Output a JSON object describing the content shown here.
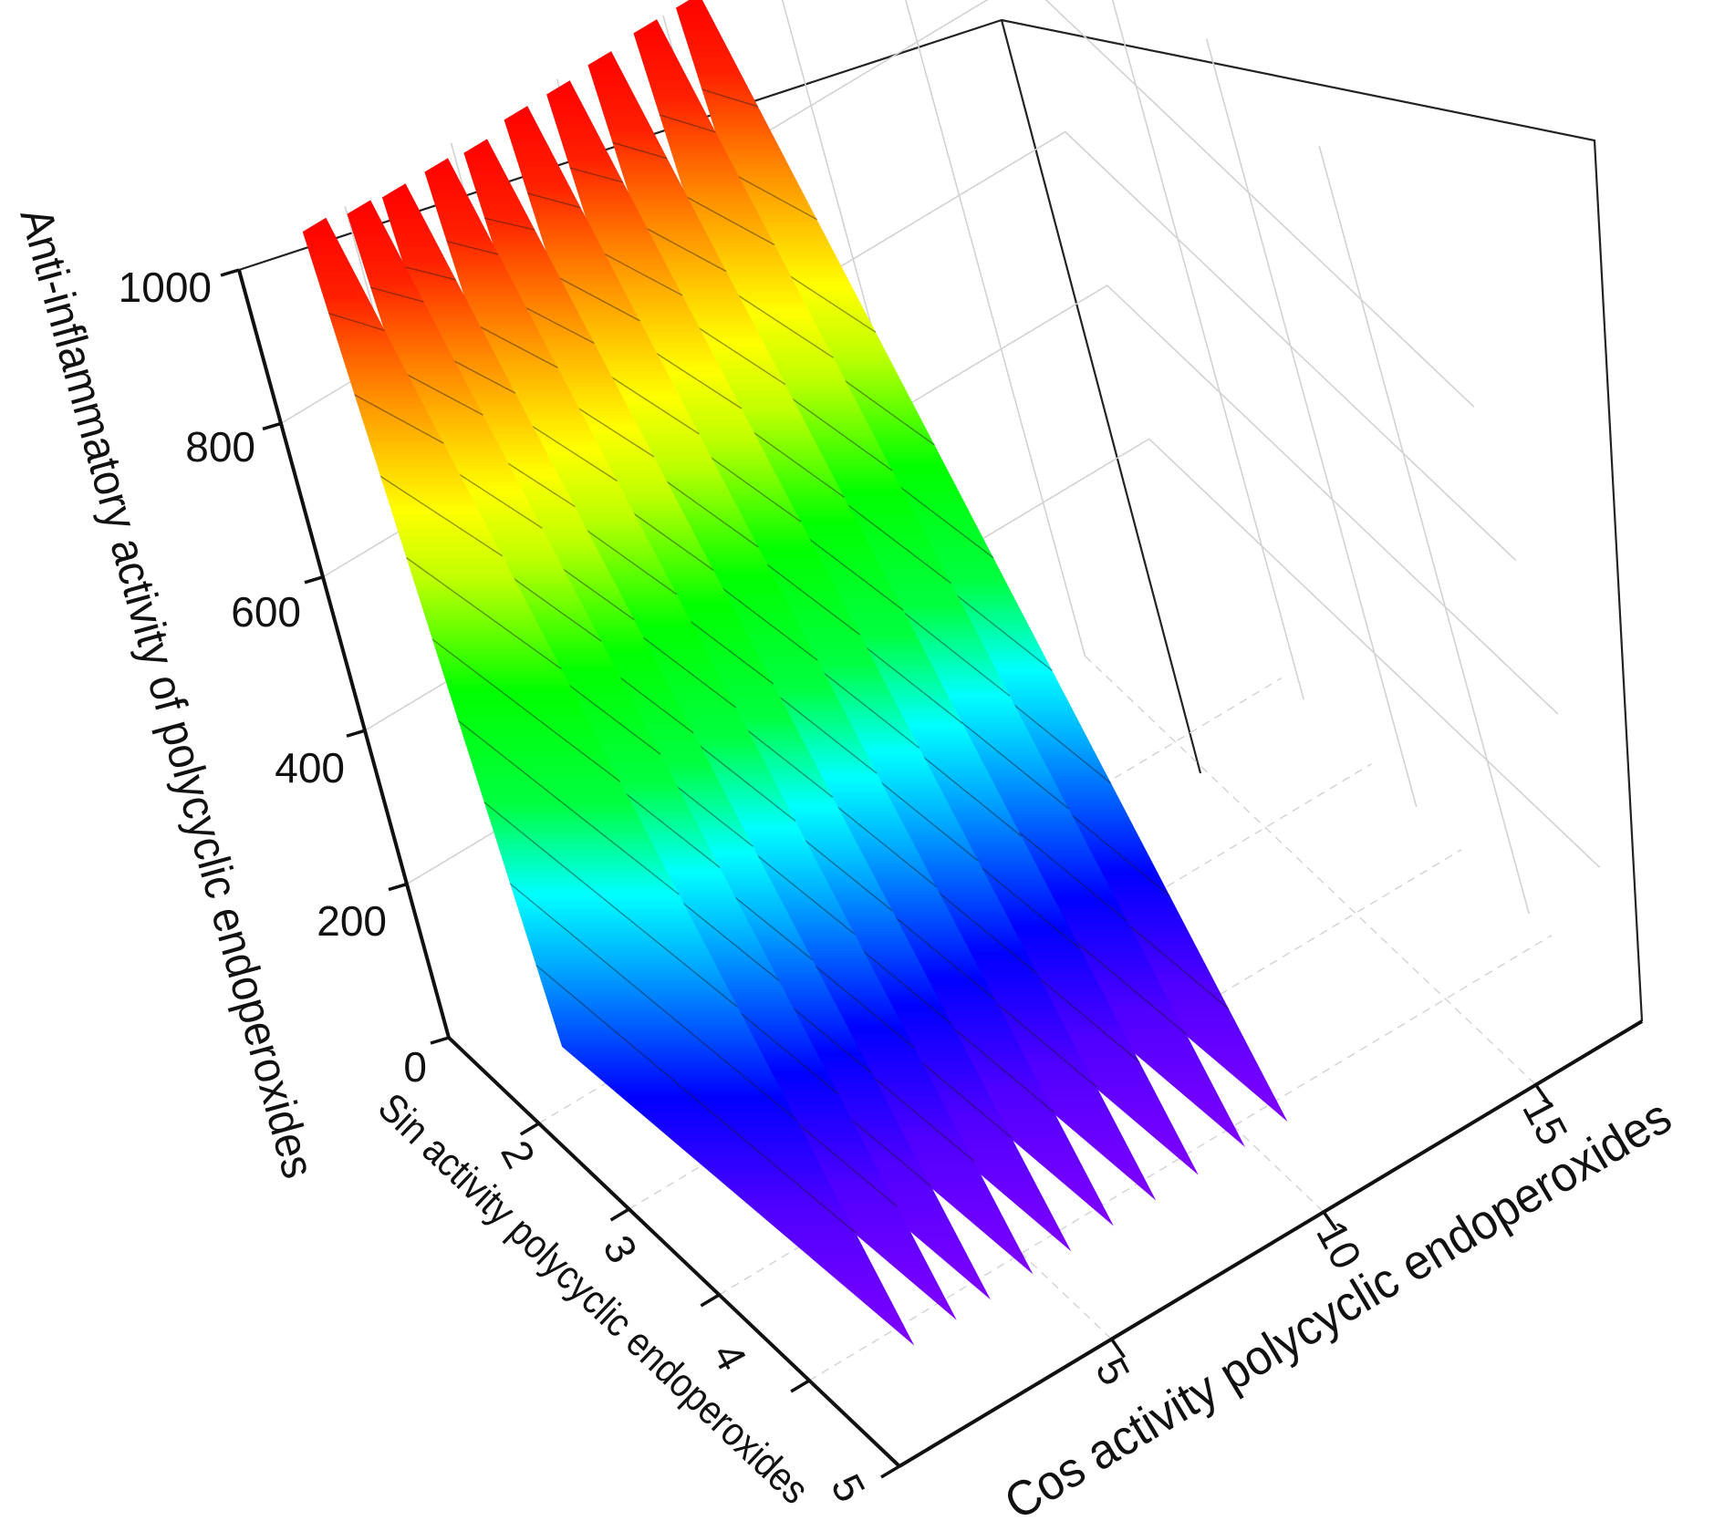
{
  "chart_data": {
    "type": "surface3d",
    "title": "",
    "zlabel": "Anti-inflammatory activity of polycyclic endoperoxides",
    "ylabel": "Sin activity polycyclic endoperoxides",
    "xlabel": "Cos activity polycyclic endoperoxides",
    "z_ticks": [
      "0",
      "200",
      "400",
      "600",
      "800",
      "1000"
    ],
    "y_ticks": [
      "0",
      "2",
      "3",
      "4",
      "5"
    ],
    "x_ticks": [
      "5",
      "10",
      "15"
    ],
    "zlim": [
      0,
      1000
    ],
    "colormap": [
      "#8000ff",
      "#0000ff",
      "#00ffff",
      "#00ff00",
      "#ffff00",
      "#ff8000",
      "#ff0000"
    ],
    "grid": true,
    "slabs": [
      {
        "cos": 1.5,
        "peak": 1000
      },
      {
        "cos": 2.5,
        "peak": 990
      },
      {
        "cos": 3.3,
        "peak": 985
      },
      {
        "cos": 4.3,
        "peak": 985
      },
      {
        "cos": 5.2,
        "peak": 980
      },
      {
        "cos": 6.2,
        "peak": 990
      },
      {
        "cos": 7.2,
        "peak": 990
      },
      {
        "cos": 8.2,
        "peak": 995
      },
      {
        "cos": 9.3,
        "peak": 1000
      },
      {
        "cos": 10.3,
        "peak": 1000
      }
    ]
  }
}
